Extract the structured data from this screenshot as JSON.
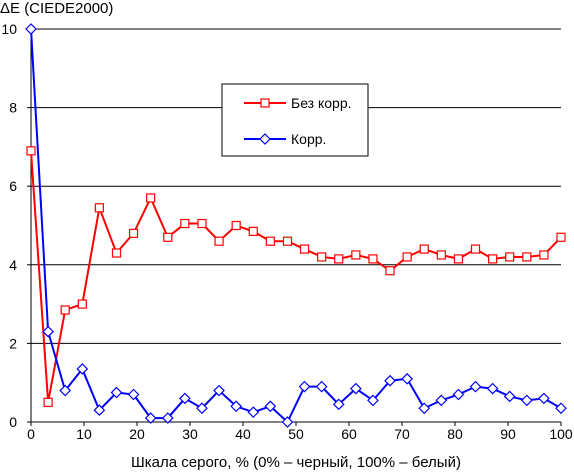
{
  "chart_data": {
    "type": "line",
    "title": "",
    "ylabel": "ΔE (CIEDE2000)",
    "xlabel": "Шкала серого, % (0% – черный, 100% – белый)",
    "xlim": [
      0,
      100
    ],
    "ylim": [
      0,
      10
    ],
    "x_ticks": [
      0,
      10,
      20,
      30,
      40,
      50,
      60,
      70,
      80,
      90,
      100
    ],
    "y_ticks": [
      0,
      2,
      4,
      6,
      8,
      10
    ],
    "grid": "horizontal",
    "legend_position": "upper-right-inside",
    "x": [
      0,
      3.23,
      6.45,
      9.68,
      12.9,
      16.13,
      19.35,
      22.58,
      25.81,
      29.03,
      32.26,
      35.48,
      38.71,
      41.94,
      45.16,
      48.39,
      51.61,
      54.84,
      58.06,
      61.29,
      64.52,
      67.74,
      70.97,
      74.19,
      77.42,
      80.65,
      83.87,
      87.1,
      90.32,
      93.55,
      96.77,
      100
    ],
    "series": [
      {
        "name": "Без корр.",
        "color": "#ff0000",
        "marker": "square",
        "values": [
          6.9,
          0.5,
          2.85,
          3.0,
          5.45,
          4.3,
          4.8,
          5.7,
          4.7,
          5.05,
          5.05,
          4.6,
          5.0,
          4.85,
          4.6,
          4.6,
          4.4,
          4.2,
          4.15,
          4.25,
          4.15,
          3.85,
          4.2,
          4.4,
          4.25,
          4.15,
          4.4,
          4.15,
          4.2,
          4.2,
          4.25,
          4.7
        ]
      },
      {
        "name": "Корр.",
        "color": "#0000ff",
        "marker": "diamond",
        "values": [
          10.0,
          2.3,
          0.8,
          1.35,
          0.3,
          0.75,
          0.7,
          0.1,
          0.1,
          0.6,
          0.35,
          0.8,
          0.4,
          0.25,
          0.4,
          0.0,
          0.9,
          0.9,
          0.45,
          0.85,
          0.55,
          1.05,
          1.1,
          0.35,
          0.55,
          0.7,
          0.9,
          0.85,
          0.65,
          0.55,
          0.6,
          0.35
        ]
      }
    ]
  }
}
